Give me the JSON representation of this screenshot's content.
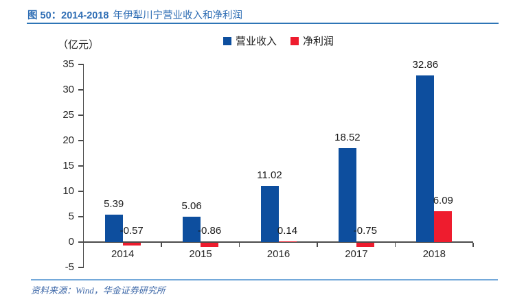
{
  "title": {
    "part1": "图 50：2014-2018",
    "part2": "年伊犁川宁营业收入和净利润"
  },
  "source": "资料来源：Wind，华金证券研究所",
  "colors": {
    "title": "#2E6DB4",
    "rule-top": "#2E75B6",
    "rule-bottom": "#74A9DA",
    "source-text": "#3E68A8",
    "axis": "#4A4A4A",
    "label-text": "#1A1A1A"
  },
  "chart_data": {
    "type": "bar",
    "title": "2014-2018 年伊犁川宁营业收入和净利润",
    "categories": [
      "2014",
      "2015",
      "2016",
      "2017",
      "2018"
    ],
    "series": [
      {
        "name": "营业收入",
        "color": "#0D4E9E",
        "values": [
          5.39,
          5.06,
          11.02,
          18.52,
          32.86
        ]
      },
      {
        "name": "净利润",
        "color": "#EE1C2E",
        "values": [
          -0.57,
          -0.86,
          0.14,
          -0.75,
          6.09
        ]
      }
    ],
    "ylabel": "（亿元）",
    "ylim": [
      -5,
      35
    ],
    "yticks": [
      35,
      30,
      25,
      20,
      15,
      10,
      5,
      0,
      -5
    ],
    "grid": false,
    "legend_position": "top",
    "value_labels": true
  }
}
